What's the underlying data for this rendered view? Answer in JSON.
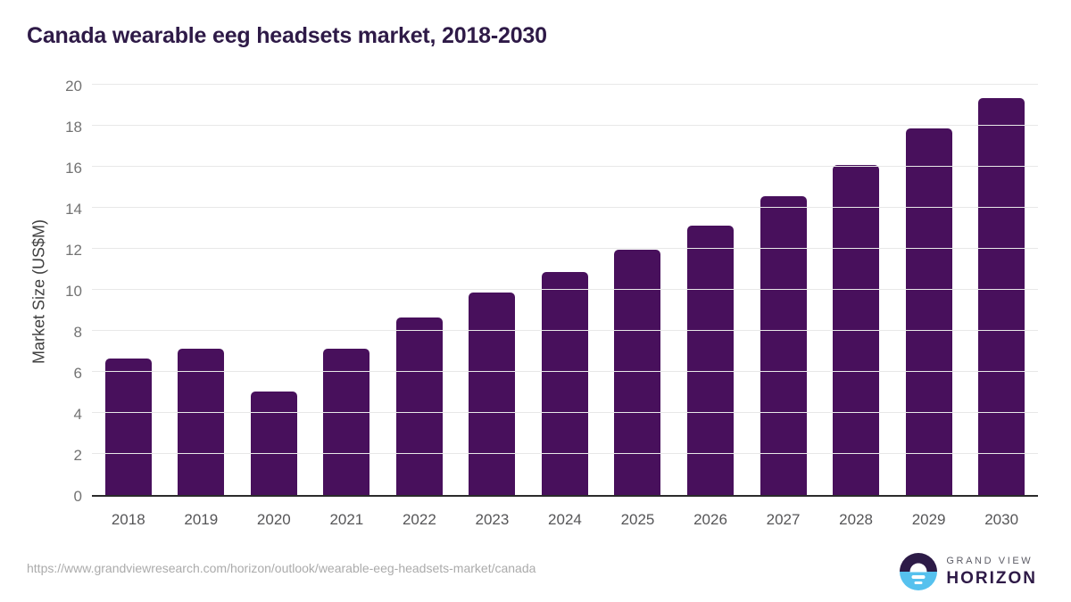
{
  "page_title": "Canada wearable eeg headsets market, 2018-2030",
  "footer": {
    "source_url": "https://www.grandviewresearch.com/horizon/outlook/wearable-eeg-headsets-market/canada",
    "brand_name_top": "GRAND VIEW",
    "brand_name_bottom": "HORIZON"
  },
  "colors": {
    "bar": "#48105c",
    "title": "#2e1a47",
    "grid": "#e8e8e8",
    "axis": "#2b2b2b",
    "tick": "#737373",
    "xtick": "#565658",
    "axis_label": "#3f3f3f",
    "url": "#ababab",
    "logo_purple": "#2d1b47",
    "logo_blue": "#56c1ee",
    "brand_top": "#5c5c66"
  },
  "chart_data": {
    "type": "bar",
    "title": "Canada wearable eeg headsets market, 2018-2030",
    "categories": [
      "2018",
      "2019",
      "2020",
      "2021",
      "2022",
      "2023",
      "2024",
      "2025",
      "2026",
      "2027",
      "2028",
      "2029",
      "2030"
    ],
    "values": [
      6.65,
      7.15,
      5.05,
      7.15,
      8.65,
      9.85,
      10.85,
      11.95,
      13.15,
      14.55,
      16.1,
      17.85,
      19.35
    ],
    "xlabel": "",
    "ylabel": "Market Size (US$M)",
    "ylim": [
      0,
      20
    ],
    "ytick_step": 2,
    "legend": null,
    "grid": "horizontal",
    "bar_color": "#48105c"
  }
}
